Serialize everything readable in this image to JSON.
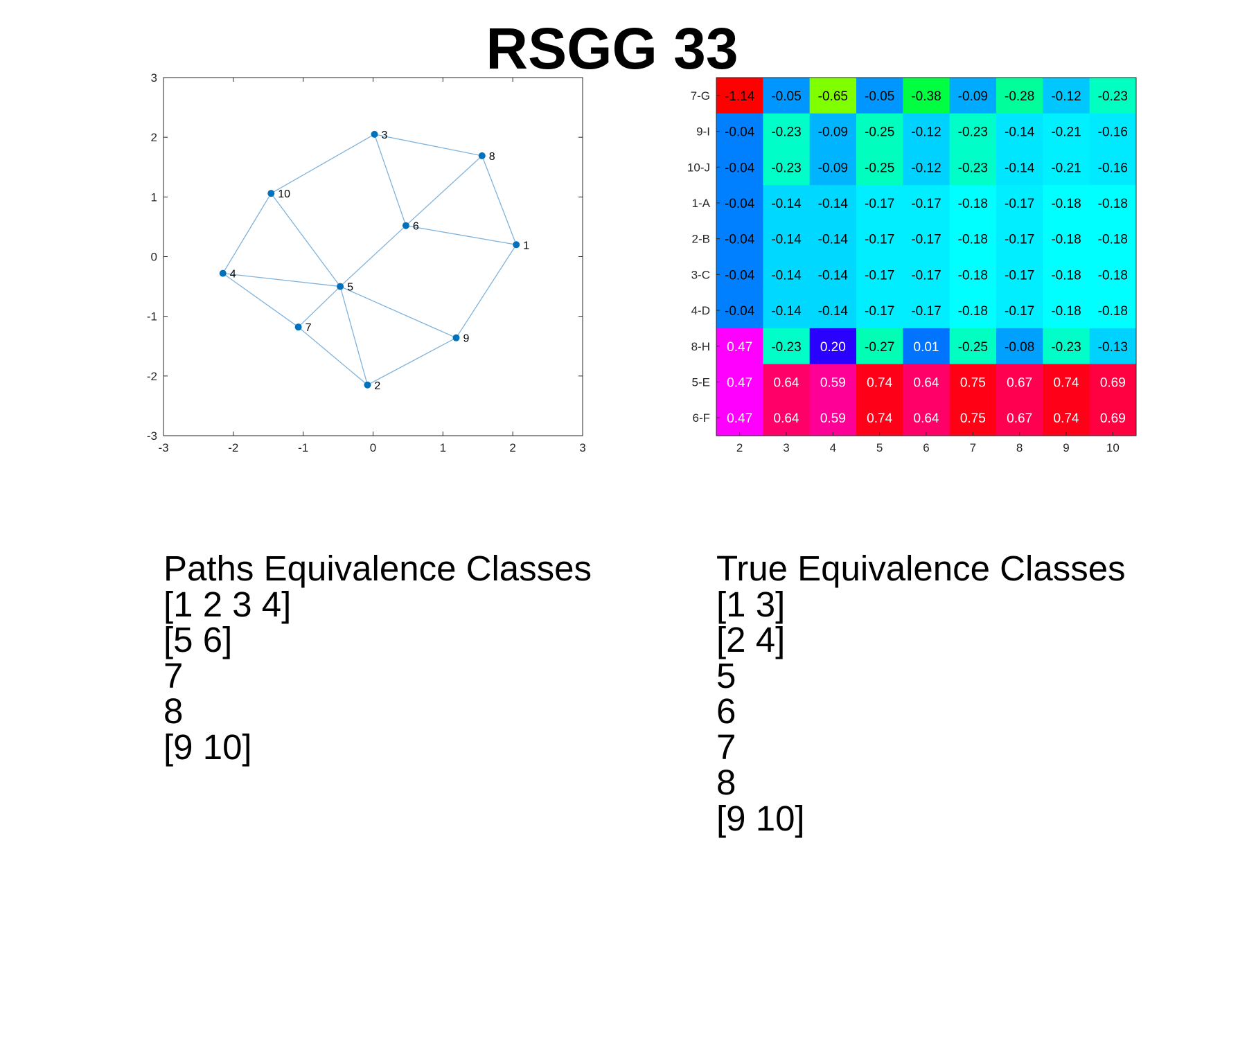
{
  "title": "RSGG 33",
  "graph": {
    "x_ticks": [
      "-3",
      "-2",
      "-1",
      "0",
      "1",
      "2",
      "3"
    ],
    "y_ticks": [
      "3",
      "2",
      "1",
      "0",
      "-1",
      "-2",
      "-3"
    ],
    "xlim": [
      -3,
      3
    ],
    "ylim": [
      -3,
      3
    ],
    "node_color": "#0072BD",
    "edge_color": "#7fb2db",
    "nodes": [
      {
        "label": "1",
        "x": 2.05,
        "y": 0.2
      },
      {
        "label": "2",
        "x": -0.08,
        "y": -2.15
      },
      {
        "label": "3",
        "x": 0.02,
        "y": 2.05
      },
      {
        "label": "4",
        "x": -2.15,
        "y": -0.28
      },
      {
        "label": "5",
        "x": -0.47,
        "y": -0.5
      },
      {
        "label": "6",
        "x": 0.47,
        "y": 0.52
      },
      {
        "label": "7",
        "x": -1.07,
        "y": -1.18
      },
      {
        "label": "8",
        "x": 1.56,
        "y": 1.69
      },
      {
        "label": "9",
        "x": 1.19,
        "y": -1.36
      },
      {
        "label": "10",
        "x": -1.46,
        "y": 1.06
      }
    ],
    "edges": [
      [
        "3",
        "8"
      ],
      [
        "3",
        "10"
      ],
      [
        "3",
        "6"
      ],
      [
        "8",
        "6"
      ],
      [
        "8",
        "1"
      ],
      [
        "6",
        "1"
      ],
      [
        "6",
        "5"
      ],
      [
        "10",
        "4"
      ],
      [
        "10",
        "5"
      ],
      [
        "4",
        "5"
      ],
      [
        "4",
        "7"
      ],
      [
        "7",
        "5"
      ],
      [
        "7",
        "2"
      ],
      [
        "5",
        "2"
      ],
      [
        "5",
        "9"
      ],
      [
        "2",
        "9"
      ],
      [
        "9",
        "1"
      ]
    ]
  },
  "chart_data": {
    "type": "heatmap",
    "x_labels": [
      "2",
      "3",
      "4",
      "5",
      "6",
      "7",
      "8",
      "9",
      "10"
    ],
    "y_labels": [
      "7-G",
      "9-I",
      "10-J",
      "1-A",
      "2-B",
      "3-C",
      "4-D",
      "8-H",
      "5-E",
      "6-F"
    ],
    "values": [
      [
        "-1.14",
        "-0.05",
        "-0.65",
        "-0.05",
        "-0.38",
        "-0.09",
        "-0.28",
        "-0.12",
        "-0.23"
      ],
      [
        "-0.04",
        "-0.23",
        "-0.09",
        "-0.25",
        "-0.12",
        "-0.23",
        "-0.14",
        "-0.21",
        "-0.16"
      ],
      [
        "-0.04",
        "-0.23",
        "-0.09",
        "-0.25",
        "-0.12",
        "-0.23",
        "-0.14",
        "-0.21",
        "-0.16"
      ],
      [
        "-0.04",
        "-0.14",
        "-0.14",
        "-0.17",
        "-0.17",
        "-0.18",
        "-0.17",
        "-0.18",
        "-0.18"
      ],
      [
        "-0.04",
        "-0.14",
        "-0.14",
        "-0.17",
        "-0.17",
        "-0.18",
        "-0.17",
        "-0.18",
        "-0.18"
      ],
      [
        "-0.04",
        "-0.14",
        "-0.14",
        "-0.17",
        "-0.17",
        "-0.18",
        "-0.17",
        "-0.18",
        "-0.18"
      ],
      [
        "-0.04",
        "-0.14",
        "-0.14",
        "-0.17",
        "-0.17",
        "-0.18",
        "-0.17",
        "-0.18",
        "-0.18"
      ],
      [
        "0.47",
        "-0.23",
        "0.20",
        "-0.27",
        "0.01",
        "-0.25",
        "-0.08",
        "-0.23",
        "-0.13"
      ],
      [
        "0.47",
        "0.64",
        "0.59",
        "0.74",
        "0.64",
        "0.75",
        "0.67",
        "0.74",
        "0.69"
      ],
      [
        "0.47",
        "0.64",
        "0.59",
        "0.74",
        "0.64",
        "0.75",
        "0.67",
        "0.74",
        "0.69"
      ]
    ],
    "colors": [
      [
        "#ff0000",
        "#0096ff",
        "#80ff00",
        "#0096ff",
        "#00ff40",
        "#00aaff",
        "#00ff9a",
        "#00c8ff",
        "#00ffc0"
      ],
      [
        "#0080ff",
        "#00ffc8",
        "#00b4ff",
        "#00ffbe",
        "#00d2ff",
        "#00ffc8",
        "#00e6ff",
        "#00f0ff",
        "#00eaff"
      ],
      [
        "#0080ff",
        "#00ffc8",
        "#00b4ff",
        "#00ffbe",
        "#00d2ff",
        "#00ffc8",
        "#00e6ff",
        "#00f0ff",
        "#00eaff"
      ],
      [
        "#0080ff",
        "#00d8ff",
        "#00d8ff",
        "#00eeff",
        "#00eeff",
        "#00ffff",
        "#00eeff",
        "#00ffff",
        "#00ffff"
      ],
      [
        "#0080ff",
        "#00d8ff",
        "#00d8ff",
        "#00eeff",
        "#00eeff",
        "#00ffff",
        "#00eeff",
        "#00ffff",
        "#00ffff"
      ],
      [
        "#0080ff",
        "#00d8ff",
        "#00d8ff",
        "#00eeff",
        "#00eeff",
        "#00ffff",
        "#00eeff",
        "#00ffff",
        "#00ffff"
      ],
      [
        "#0080ff",
        "#00d8ff",
        "#00d8ff",
        "#00eeff",
        "#00eeff",
        "#00ffff",
        "#00eeff",
        "#00ffff",
        "#00ffff"
      ],
      [
        "#ff00ff",
        "#00ffc8",
        "#2a00ff",
        "#00ffb4",
        "#0073ff",
        "#00ffc0",
        "#00a0ff",
        "#00ffc8",
        "#00d2ff"
      ],
      [
        "#ff00ff",
        "#ff0069",
        "#ff0096",
        "#ff0019",
        "#ff0069",
        "#ff0014",
        "#ff0050",
        "#ff0019",
        "#ff0041"
      ],
      [
        "#ff00ff",
        "#ff0069",
        "#ff0096",
        "#ff0019",
        "#ff0069",
        "#ff0014",
        "#ff0050",
        "#ff0019",
        "#ff0041"
      ]
    ],
    "light_text_cells": [
      [
        7,
        0
      ],
      [
        7,
        2
      ],
      [
        7,
        4
      ],
      [
        8,
        0
      ],
      [
        8,
        1
      ],
      [
        8,
        2
      ],
      [
        8,
        3
      ],
      [
        8,
        4
      ],
      [
        8,
        5
      ],
      [
        8,
        6
      ],
      [
        8,
        7
      ],
      [
        8,
        8
      ],
      [
        9,
        0
      ],
      [
        9,
        1
      ],
      [
        9,
        2
      ],
      [
        9,
        3
      ],
      [
        9,
        4
      ],
      [
        9,
        5
      ],
      [
        9,
        6
      ],
      [
        9,
        7
      ],
      [
        9,
        8
      ]
    ]
  },
  "paths_classes": {
    "heading": "Paths Equivalence Classes",
    "items": [
      "[1 2 3 4]",
      "[5 6]",
      "7",
      "8",
      "[9 10]"
    ]
  },
  "true_classes": {
    "heading": "True Equivalence Classes",
    "items": [
      "[1 3]",
      "[2 4]",
      "5",
      "6",
      "7",
      "8",
      "[9 10]"
    ]
  }
}
